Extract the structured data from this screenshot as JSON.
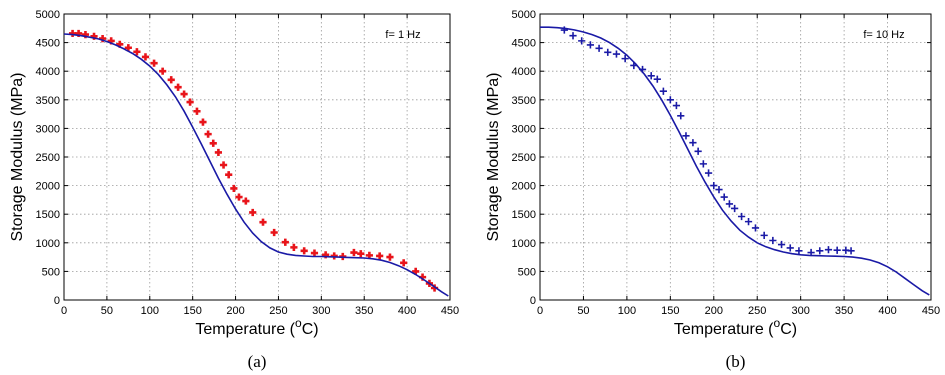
{
  "chart_data": [
    {
      "type": "scatter",
      "caption": "(a)",
      "annotation": "f= 1 Hz",
      "xlabel_text": "Temperature (",
      "xlabel_sup": "o",
      "xlabel_unit": "C)",
      "ylabel": "Storage Modulus (MPa)",
      "xlim": [
        0,
        450
      ],
      "ylim": [
        0,
        5000
      ],
      "xticks": [
        0,
        50,
        100,
        150,
        200,
        250,
        300,
        350,
        400,
        450
      ],
      "yticks": [
        0,
        500,
        1000,
        1500,
        2000,
        2500,
        3000,
        3500,
        4000,
        4500,
        5000
      ],
      "grid": true,
      "marker_color": "#e8141a",
      "line_color": "#1a1aa6",
      "series": [
        {
          "kind": "markers",
          "marker": "plus",
          "x": [
            10,
            17,
            25,
            35,
            45,
            55,
            65,
            75,
            85,
            95,
            105,
            115,
            125,
            133,
            140,
            147,
            155,
            162,
            168,
            174,
            180,
            186,
            192,
            198,
            204,
            212,
            220,
            232,
            245,
            258,
            268,
            280,
            292,
            305,
            315,
            325,
            338,
            346,
            356,
            368,
            380,
            396,
            410,
            418,
            426,
            432
          ],
          "y": [
            4660,
            4660,
            4640,
            4610,
            4570,
            4530,
            4470,
            4410,
            4340,
            4250,
            4140,
            4000,
            3850,
            3720,
            3600,
            3460,
            3300,
            3110,
            2900,
            2740,
            2580,
            2360,
            2190,
            1950,
            1800,
            1730,
            1530,
            1360,
            1180,
            1010,
            920,
            860,
            820,
            790,
            770,
            760,
            830,
            810,
            780,
            770,
            750,
            650,
            500,
            400,
            290,
            210
          ]
        },
        {
          "kind": "line",
          "x": [
            0,
            10,
            20,
            30,
            40,
            50,
            60,
            70,
            80,
            90,
            100,
            110,
            120,
            130,
            140,
            150,
            160,
            170,
            180,
            190,
            200,
            210,
            220,
            230,
            240,
            250,
            260,
            270,
            280,
            290,
            300,
            310,
            320,
            330,
            340,
            350,
            360,
            370,
            380,
            390,
            400,
            410,
            420,
            430,
            440,
            448
          ],
          "y": [
            4650,
            4640,
            4620,
            4595,
            4565,
            4520,
            4460,
            4390,
            4310,
            4210,
            4090,
            3940,
            3760,
            3550,
            3300,
            3020,
            2730,
            2430,
            2130,
            1850,
            1590,
            1360,
            1170,
            1020,
            910,
            840,
            800,
            780,
            770,
            760,
            760,
            755,
            750,
            745,
            740,
            735,
            720,
            695,
            655,
            600,
            530,
            445,
            350,
            250,
            145,
            70
          ]
        }
      ]
    },
    {
      "type": "scatter",
      "caption": "(b)",
      "annotation": "f= 10 Hz",
      "xlabel_text": "Temperature (",
      "xlabel_sup": "o",
      "xlabel_unit": "C)",
      "ylabel": "Storage Modulus (MPa)",
      "xlim": [
        0,
        450
      ],
      "ylim": [
        0,
        5000
      ],
      "xticks": [
        0,
        50,
        100,
        150,
        200,
        250,
        300,
        350,
        400,
        450
      ],
      "yticks": [
        0,
        500,
        1000,
        1500,
        2000,
        2500,
        3000,
        3500,
        4000,
        4500,
        5000
      ],
      "grid": true,
      "marker_color": "#1a1aa6",
      "line_color": "#1a1aa6",
      "series": [
        {
          "kind": "markers",
          "marker": "plus",
          "x": [
            28,
            38,
            48,
            58,
            68,
            78,
            88,
            98,
            108,
            118,
            128,
            135,
            142,
            150,
            157,
            162,
            168,
            176,
            182,
            188,
            194,
            200,
            206,
            212,
            218,
            224,
            232,
            240,
            248,
            258,
            268,
            278,
            288,
            298,
            312,
            322,
            332,
            342,
            352,
            358
          ],
          "y": [
            4720,
            4620,
            4530,
            4460,
            4400,
            4330,
            4300,
            4220,
            4100,
            4030,
            3920,
            3860,
            3650,
            3500,
            3400,
            3220,
            2870,
            2750,
            2600,
            2380,
            2220,
            2000,
            1930,
            1800,
            1680,
            1600,
            1460,
            1370,
            1260,
            1130,
            1040,
            970,
            910,
            860,
            830,
            860,
            880,
            870,
            870,
            860
          ]
        },
        {
          "kind": "line",
          "x": [
            0,
            10,
            20,
            30,
            40,
            50,
            60,
            70,
            80,
            90,
            100,
            110,
            120,
            130,
            140,
            150,
            160,
            170,
            180,
            190,
            200,
            210,
            220,
            230,
            240,
            250,
            260,
            270,
            280,
            290,
            300,
            310,
            320,
            330,
            340,
            350,
            360,
            370,
            380,
            390,
            400,
            410,
            420,
            430,
            440,
            448
          ],
          "y": [
            4770,
            4770,
            4760,
            4745,
            4720,
            4685,
            4640,
            4580,
            4500,
            4400,
            4280,
            4130,
            3950,
            3740,
            3500,
            3230,
            2940,
            2640,
            2340,
            2060,
            1800,
            1570,
            1380,
            1220,
            1100,
            1000,
            930,
            880,
            840,
            810,
            790,
            780,
            775,
            770,
            765,
            760,
            750,
            730,
            700,
            650,
            580,
            490,
            380,
            270,
            160,
            90
          ]
        }
      ]
    }
  ]
}
